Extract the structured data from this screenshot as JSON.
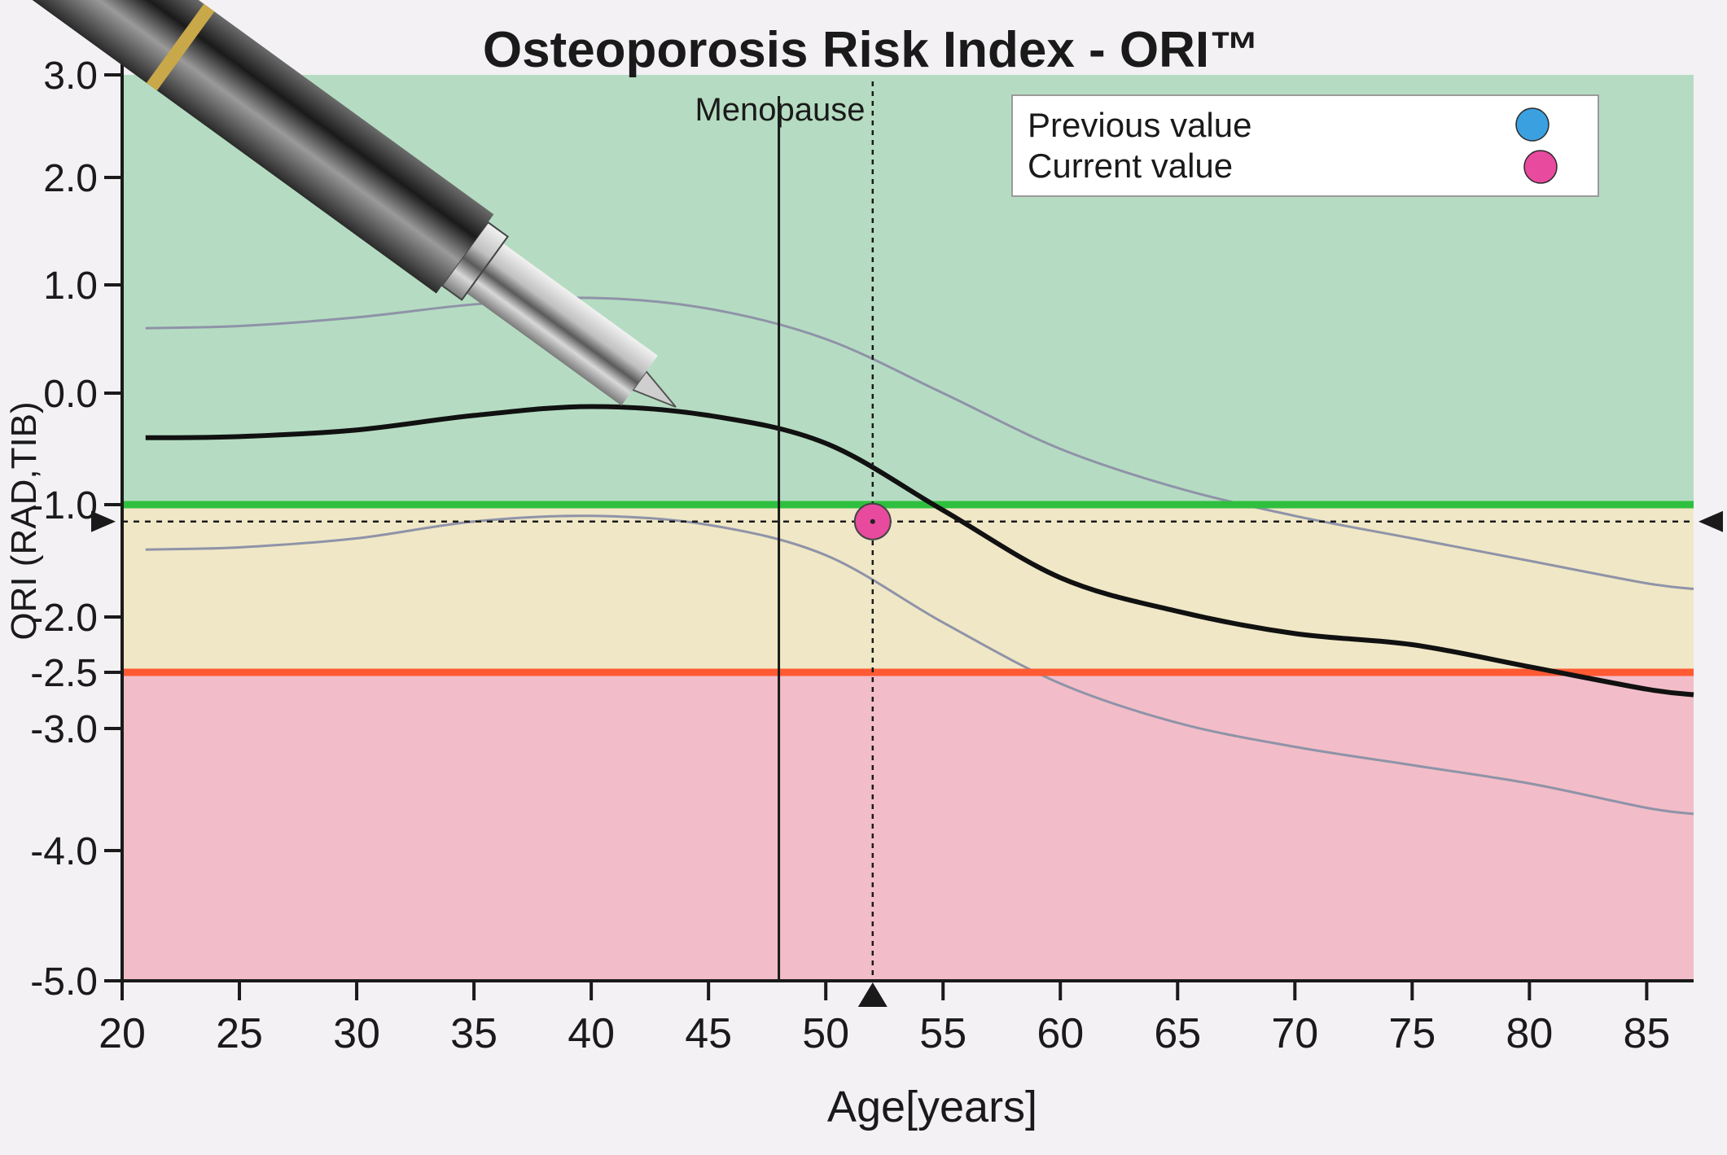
{
  "chart_data": {
    "type": "line",
    "title": "Osteoporosis Risk Index - ORI™",
    "xlabel": "Age[years]",
    "ylabel": "ORI (RAD,TIB)",
    "xlim": [
      20,
      87
    ],
    "ylim": [
      -5.0,
      3.0
    ],
    "x_ticks": [
      20,
      25,
      30,
      35,
      40,
      45,
      50,
      55,
      60,
      65,
      70,
      75,
      80,
      85
    ],
    "y_ticks": [
      {
        "value": 3.0,
        "label": "3.0"
      },
      {
        "value": 2.0,
        "label": "2.0"
      },
      {
        "value": 1.0,
        "label": "1.0"
      },
      {
        "value": 0.0,
        "label": "0.0"
      },
      {
        "value": -1.0,
        "label": "-1.0"
      },
      {
        "value": -2.0,
        "label": "-2.0"
      },
      {
        "value": -2.5,
        "label": "-2.5"
      },
      {
        "value": -3.0,
        "label": "-3.0"
      },
      {
        "value": -4.0,
        "label": "-4.0"
      },
      {
        "value": -5.0,
        "label": "-5.0"
      }
    ],
    "zones": [
      {
        "from": -1.0,
        "to": 3.0,
        "color": "#b5dcc2"
      },
      {
        "from": -2.5,
        "to": -1.0,
        "color": "#f0e7c6"
      },
      {
        "from": -5.0,
        "to": -2.5,
        "color": "#f2bdc8"
      }
    ],
    "threshold_lines": [
      {
        "y": -1.0,
        "color": "#2fbf3f"
      },
      {
        "y": -2.5,
        "color": "#ff5a33"
      }
    ],
    "reference_mean": {
      "x": [
        21,
        25,
        30,
        35,
        40,
        45,
        50,
        55,
        60,
        65,
        70,
        75,
        80,
        85,
        87
      ],
      "y": [
        -0.4,
        -0.39,
        -0.33,
        -0.2,
        -0.12,
        -0.2,
        -0.45,
        -1.05,
        -1.65,
        -1.95,
        -2.15,
        -2.25,
        -2.45,
        -2.65,
        -2.7
      ]
    },
    "reference_upper": {
      "x": [
        21,
        25,
        30,
        35,
        40,
        45,
        50,
        55,
        60,
        65,
        70,
        75,
        80,
        85,
        87
      ],
      "y": [
        0.6,
        0.62,
        0.7,
        0.82,
        0.88,
        0.78,
        0.5,
        0.0,
        -0.5,
        -0.85,
        -1.1,
        -1.3,
        -1.5,
        -1.7,
        -1.75
      ]
    },
    "reference_lower": {
      "x": [
        21,
        25,
        30,
        35,
        40,
        45,
        50,
        55,
        60,
        65,
        70,
        75,
        80,
        85,
        87
      ],
      "y": [
        -1.4,
        -1.38,
        -1.3,
        -1.15,
        -1.1,
        -1.18,
        -1.45,
        -2.05,
        -2.6,
        -2.95,
        -3.15,
        -3.3,
        -3.45,
        -3.65,
        -3.7
      ]
    },
    "menopause": {
      "x": 48,
      "label": "Menopause"
    },
    "current_value": {
      "x": 52,
      "y": -1.15,
      "color": "#e84a9e"
    },
    "legend": {
      "position": "top-right",
      "items": [
        {
          "label": "Previous value",
          "color": "#3aa0e0"
        },
        {
          "label": "Current value",
          "color": "#e84a9e"
        }
      ]
    }
  }
}
